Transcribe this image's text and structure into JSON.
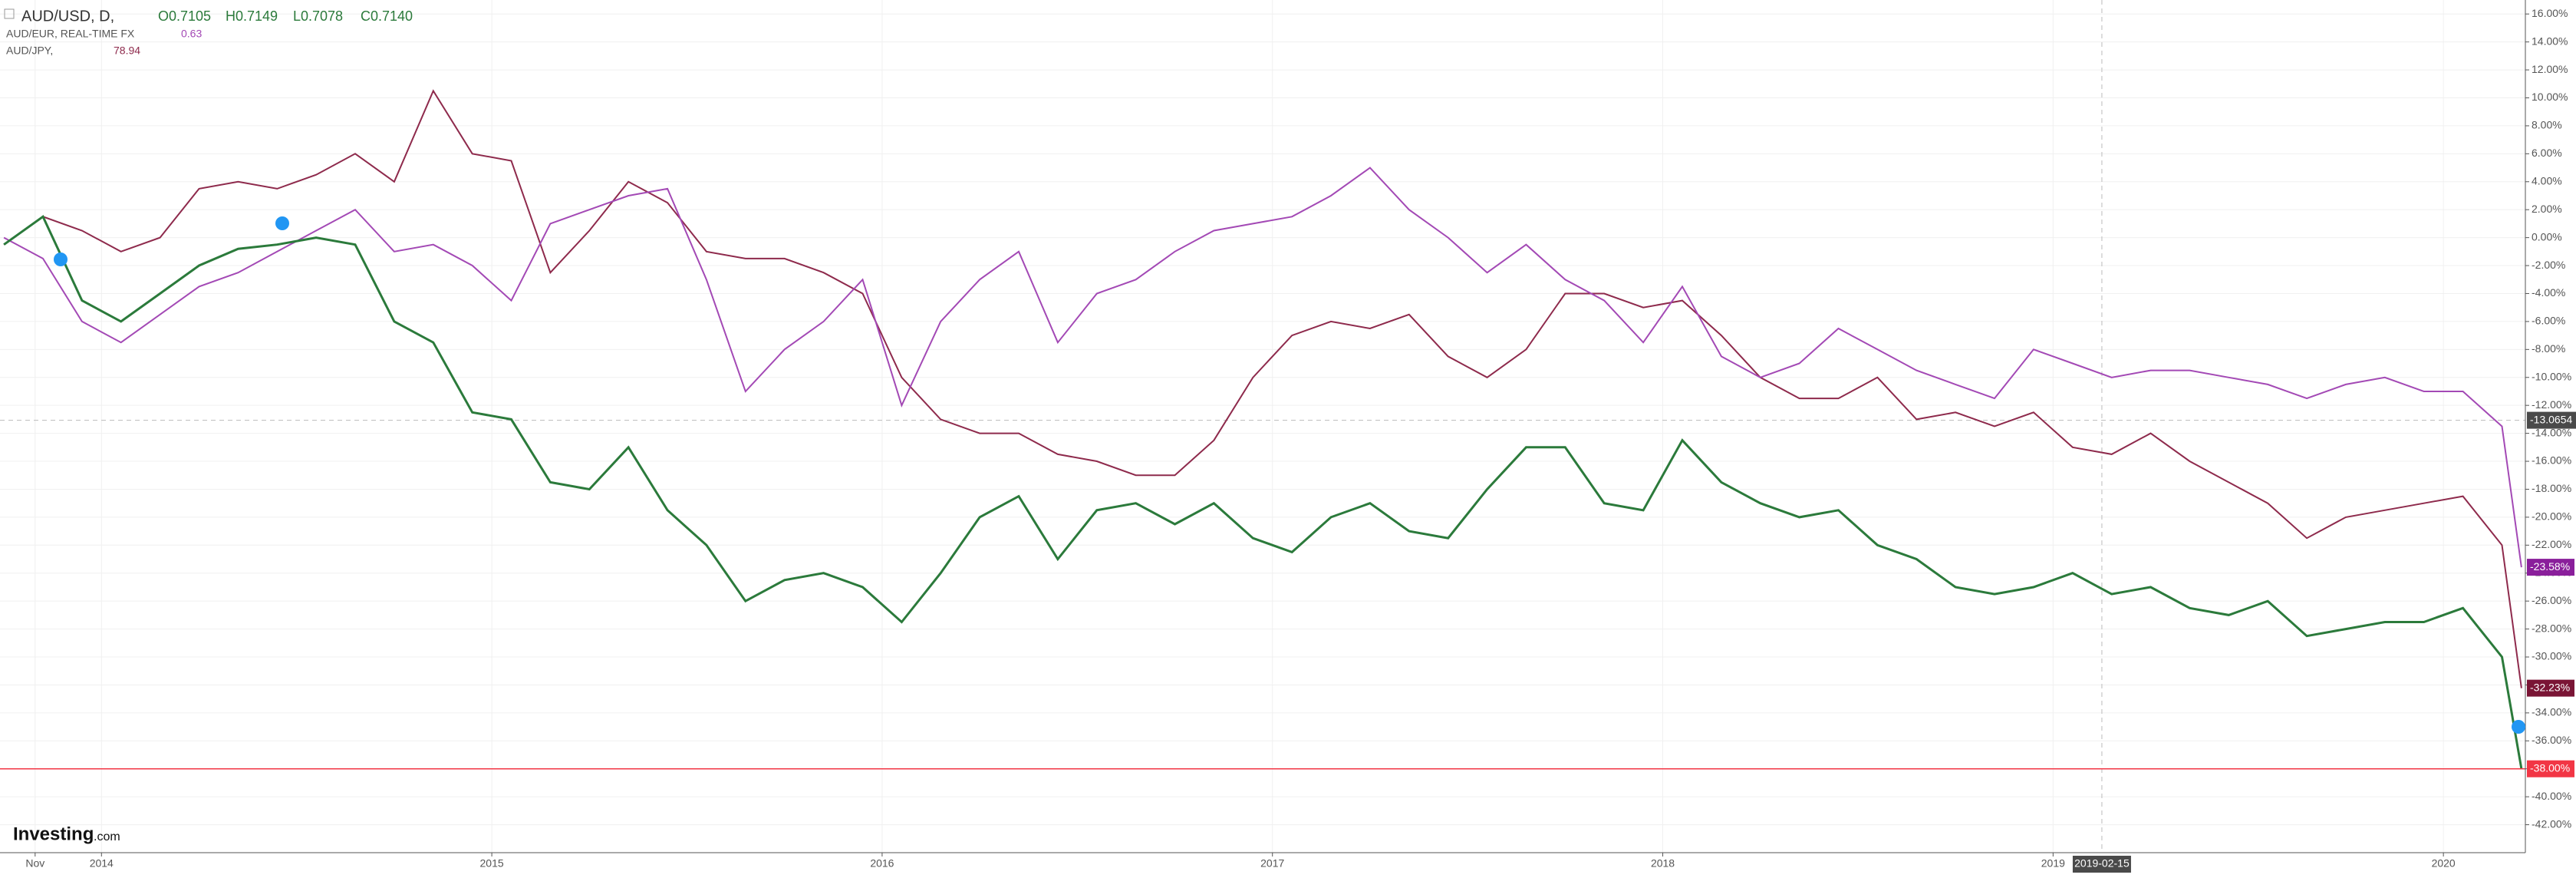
{
  "header": {
    "symbol": "AUD/USD, D,",
    "ohlc": [
      "O0.7105",
      "H0.7149",
      "L0.7078",
      "C0.7140"
    ],
    "compare": [
      {
        "name": "AUD/EUR, REAL-TIME FX",
        "value": "0.63"
      },
      {
        "name": "AUD/JPY,",
        "value": "78.94"
      }
    ]
  },
  "logo": {
    "name": "Investing",
    "suffix": ".com"
  },
  "chart_data": {
    "type": "line",
    "grid": true,
    "x": [
      2013.75,
      2013.85,
      2013.95,
      2014.05,
      2014.15,
      2014.25,
      2014.35,
      2014.45,
      2014.55,
      2014.65,
      2014.75,
      2014.85,
      2014.95,
      2015.05,
      2015.15,
      2015.25,
      2015.35,
      2015.45,
      2015.55,
      2015.65,
      2015.75,
      2015.85,
      2015.95,
      2016.05,
      2016.15,
      2016.25,
      2016.35,
      2016.45,
      2016.55,
      2016.65,
      2016.75,
      2016.85,
      2016.95,
      2017.05,
      2017.15,
      2017.25,
      2017.35,
      2017.45,
      2017.55,
      2017.65,
      2017.75,
      2017.85,
      2017.95,
      2018.05,
      2018.15,
      2018.25,
      2018.35,
      2018.45,
      2018.55,
      2018.65,
      2018.75,
      2018.85,
      2018.95,
      2019.05,
      2019.15,
      2019.25,
      2019.35,
      2019.45,
      2019.55,
      2019.65,
      2019.75,
      2019.85,
      2019.95,
      2020.05,
      2020.15,
      2020.2
    ],
    "series": [
      {
        "name": "AUD/USD",
        "color": "#2b7a3b",
        "label_color": "#f23645",
        "last_value_label": "-38.00%",
        "values": [
          -0.5,
          1.5,
          -4.5,
          -6.0,
          -4.0,
          -2.0,
          -0.8,
          -0.5,
          0.0,
          -0.5,
          -6.0,
          -7.5,
          -12.5,
          -13.0,
          -17.5,
          -18.0,
          -15.0,
          -19.5,
          -22.0,
          -26.0,
          -24.5,
          -24.0,
          -25.0,
          -27.5,
          -24.0,
          -20.0,
          -18.5,
          -23.0,
          -19.5,
          -19.0,
          -20.5,
          -19.0,
          -21.5,
          -22.5,
          -20.0,
          -19.0,
          -21.0,
          -21.5,
          -18.0,
          -15.0,
          -15.0,
          -19.0,
          -19.5,
          -14.5,
          -17.5,
          -19.0,
          -20.0,
          -19.5,
          -22.0,
          -23.0,
          -25.0,
          -25.5,
          -25.0,
          -24.0,
          -25.5,
          -25.0,
          -26.5,
          -27.0,
          -26.0,
          -28.5,
          -28.0,
          -27.5,
          -27.5,
          -26.5,
          -30.0,
          -38.0
        ]
      },
      {
        "name": "AUD/EUR",
        "color": "#a349b5",
        "label_color": "#8a1f9b",
        "last_value_label": "-23.58%",
        "values": [
          0.0,
          -1.5,
          -6.0,
          -7.5,
          -5.5,
          -3.5,
          -2.5,
          -1.0,
          0.5,
          2.0,
          -1.0,
          -0.5,
          -2.0,
          -4.5,
          1.0,
          2.0,
          3.0,
          3.5,
          -3.0,
          -11.0,
          -8.0,
          -6.0,
          -3.0,
          -12.0,
          -6.0,
          -3.0,
          -1.0,
          -7.5,
          -4.0,
          -3.0,
          -1.0,
          0.5,
          1.0,
          1.5,
          3.0,
          5.0,
          2.0,
          0.0,
          -2.5,
          -0.5,
          -3.0,
          -4.5,
          -7.5,
          -3.5,
          -8.5,
          -10.0,
          -9.0,
          -6.5,
          -8.0,
          -9.5,
          -10.5,
          -11.5,
          -8.0,
          -9.0,
          -10.0,
          -9.5,
          -9.5,
          -10.0,
          -10.5,
          -11.5,
          -10.5,
          -10.0,
          -11.0,
          -11.0,
          -13.5,
          -23.58
        ]
      },
      {
        "name": "AUD/JPY",
        "color": "#8e2a4c",
        "label_color": "#7a1535",
        "last_value_label": "-32.23%",
        "values": [
          -0.5,
          1.5,
          0.5,
          -1.0,
          0.0,
          3.5,
          4.0,
          3.5,
          4.5,
          6.0,
          4.0,
          10.5,
          6.0,
          5.5,
          -2.5,
          0.5,
          4.0,
          2.5,
          -1.0,
          -1.5,
          -1.5,
          -2.5,
          -4.0,
          -10.0,
          -13.0,
          -14.0,
          -14.0,
          -15.5,
          -16.0,
          -17.0,
          -17.0,
          -14.5,
          -10.0,
          -7.0,
          -6.0,
          -6.5,
          -5.5,
          -8.5,
          -10.0,
          -8.0,
          -4.0,
          -4.0,
          -5.0,
          -4.5,
          -7.0,
          -10.0,
          -11.5,
          -11.5,
          -10.0,
          -13.0,
          -12.5,
          -13.5,
          -12.5,
          -15.0,
          -15.5,
          -14.0,
          -16.0,
          -17.5,
          -19.0,
          -21.5,
          -20.0,
          -19.5,
          -19.0,
          -18.5,
          -22.0,
          -32.23
        ]
      }
    ],
    "xlim": [
      2013.74,
      2020.21
    ],
    "xticks": [
      {
        "value": 2013.83,
        "label": "Nov"
      },
      2014,
      2015,
      2016,
      2017,
      2018,
      2019,
      2020
    ],
    "ylim": [
      -44,
      17
    ],
    "yticks": [
      {
        "value": -42,
        "label": "-42.00%"
      },
      {
        "value": -40,
        "label": "-40.00%"
      },
      {
        "value": -38,
        "label": "-38.00%"
      },
      {
        "value": -36,
        "label": "-36.00%"
      },
      {
        "value": -34,
        "label": "-34.00%"
      },
      {
        "value": -32,
        "label": "-32.00%"
      },
      {
        "value": -30,
        "label": "-30.00%"
      },
      {
        "value": -28,
        "label": "-28.00%"
      },
      {
        "value": -26,
        "label": "-26.00%"
      },
      {
        "value": -24,
        "label": "-24.00%"
      },
      {
        "value": -22,
        "label": "-22.00%"
      },
      {
        "value": -20,
        "label": "-20.00%"
      },
      {
        "value": -18,
        "label": "-18.00%"
      },
      {
        "value": -16,
        "label": "-16.00%"
      },
      {
        "value": -14,
        "label": "-14.00%"
      },
      {
        "value": -12,
        "label": "-12.00%"
      },
      {
        "value": -10,
        "label": "-10.00%"
      },
      {
        "value": -8,
        "label": "-8.00%"
      },
      {
        "value": -6,
        "label": "-6.00%"
      },
      {
        "value": -4,
        "label": "-4.00%"
      },
      {
        "value": -2,
        "label": "-2.00%"
      },
      {
        "value": 0,
        "label": "0.00%"
      },
      {
        "value": 2,
        "label": "2.00%"
      },
      {
        "value": 4,
        "label": "4.00%"
      },
      {
        "value": 6,
        "label": "6.00%"
      },
      {
        "value": 8,
        "label": "8.00%"
      },
      {
        "value": 10,
        "label": "10.00%"
      },
      {
        "value": 12,
        "label": "12.00%"
      },
      {
        "value": 14,
        "label": "14.00%"
      },
      {
        "value": 16,
        "label": "16.00%"
      }
    ],
    "crosshair": {
      "x": 2019.125,
      "x_label": "2019-02-15",
      "y": -13.0654
    }
  }
}
